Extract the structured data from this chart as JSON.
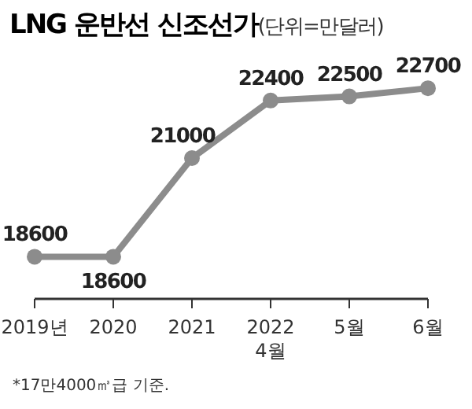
{
  "chart_data": {
    "type": "line",
    "title": "LNG 운반선 신조선가",
    "subtitle": "(단위=만달러)",
    "categories": [
      "2019년",
      "2020",
      "2021",
      "2022\n4월",
      "5월",
      "6월"
    ],
    "values": [
      18600,
      18600,
      21000,
      22400,
      22500,
      22700
    ],
    "color": "#8c8c8c",
    "marker": "circle",
    "data_labels": true,
    "annotations": [
      "*17만4000㎥급 기준."
    ]
  }
}
